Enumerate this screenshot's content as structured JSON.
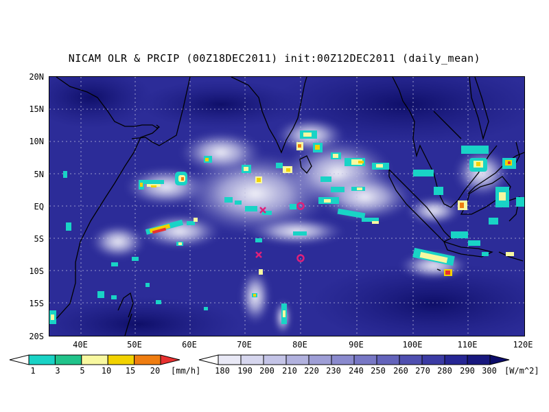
{
  "title": "NICAM OLR & PRCIP (00Z18DEC2011) init:00Z12DEC2011 (daily_mean)",
  "axes": {
    "lat_labels": [
      "20N",
      "15N",
      "10N",
      "5N",
      "EQ",
      "5S",
      "10S",
      "15S",
      "20S"
    ],
    "lon_labels": [
      "40E",
      "50E",
      "60E",
      "70E",
      "80E",
      "90E",
      "100E",
      "110E",
      "120E"
    ]
  },
  "precip_colorbar": {
    "labels": [
      "1",
      "3",
      "5",
      "10",
      "15",
      "20"
    ],
    "unit": "[mm/h]",
    "colors": [
      "#ffffff",
      "#19d3c6",
      "#20c38a",
      "#f8f8a0",
      "#f2d200",
      "#ef7d10",
      "#e83030"
    ]
  },
  "olr_colorbar": {
    "labels": [
      "180",
      "190",
      "200",
      "210",
      "220",
      "230",
      "240",
      "250",
      "260",
      "270",
      "280",
      "290",
      "300"
    ],
    "unit": "[W/m^2]",
    "colors": [
      "#ffffff",
      "#e9e9f6",
      "#d6d6ee",
      "#c4c4e7",
      "#b1b1de",
      "#9e9ed6",
      "#8a8ace",
      "#7777c5",
      "#6363bb",
      "#4f4fb0",
      "#3b3ba4",
      "#262694",
      "#18187e",
      "#0c0c6a"
    ]
  },
  "markers": [
    {
      "symbol": "x",
      "lon": 72.9,
      "lat": -0.6,
      "color": "#e0207a"
    },
    {
      "symbol": "x",
      "lon": 71.8,
      "lat": -7.2,
      "color": "#e0207a"
    },
    {
      "symbol": "o",
      "lon": 80.0,
      "lat": 0.0,
      "color": "#e0207a"
    },
    {
      "symbol": "o",
      "lon": 80.0,
      "lat": -8.0,
      "color": "#e0207a"
    }
  ],
  "map_colors": {
    "ocean": "#2a2a96",
    "deep": "#16166f",
    "cloud": "#ffffff",
    "coast": "#000000"
  }
}
